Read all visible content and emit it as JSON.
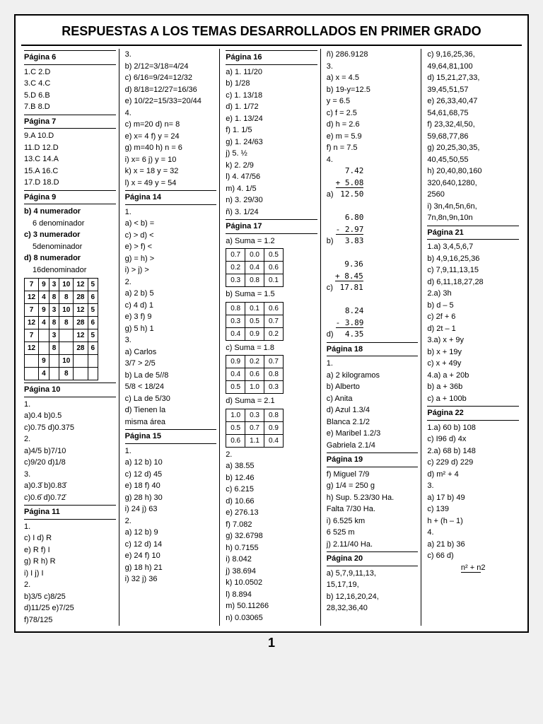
{
  "title": "RESPUESTAS A LOS TEMAS DESARROLLADOS EN PRIMER GRADO",
  "page_number": "1",
  "c1": {
    "p6": "Página 6",
    "p6a": [
      "1.C  2.D",
      "3.C  4.C",
      "5.D  6.B",
      "7.B  8.D"
    ],
    "p7": "Página 7",
    "p7a": [
      "9.A  10.D",
      "11.D 12.D",
      "13.C 14.A",
      "15.A 16.C",
      "17.D 18.D"
    ],
    "p9": "Página 9",
    "p9b": "b) 4 numerador",
    "p9b2": "6 denominador",
    "p9c": "c) 3 numerador",
    "p9c2": "5denominador",
    "p9d": "d) 8 numerador",
    "p9d2": "16denominador",
    "t1": [
      [
        "7",
        "9",
        "3",
        "10",
        "12",
        "5"
      ],
      [
        "12",
        "4",
        "8",
        "8",
        "28",
        "6"
      ],
      [
        "7",
        "9",
        "3",
        "10",
        "12",
        "5"
      ],
      [
        "12",
        "4",
        "8",
        "8",
        "28",
        "6"
      ],
      [
        "7",
        "",
        "3",
        "",
        "12",
        "5"
      ],
      [
        "12",
        "",
        "8",
        "",
        "28",
        "6"
      ],
      [
        "",
        "9",
        "",
        "10",
        "",
        ""
      ],
      [
        "",
        "4",
        "",
        "8",
        "",
        ""
      ]
    ],
    "p10": "Página 10",
    "p10a": [
      "1.",
      "a)0.4  b)0.5",
      "c)0.75  d)0.375",
      "2.",
      "a)4/5  b)7/10",
      "c)9/20  d)1/8",
      "3.",
      "a)0.3̄  b)0.83̄",
      "c)0.6̄  d)0.72̄"
    ],
    "p11": "Página 11",
    "p11a": [
      "1.",
      "c) I   d) R",
      "e) R  f) I",
      "g) R  h) R",
      "i) I   j) I",
      "2.",
      "b)3/5   c)8/25",
      "d)11/25 e)7/25",
      "f)78/125"
    ]
  },
  "c2": {
    "top": [
      "3.",
      "b) 2/12=3/18=4/24",
      "c) 6/16=9/24=12/32",
      "d) 8/18=12/27=16/36",
      "e) 10/22=15/33=20/44",
      "4.",
      "c) m=20  d) n= 8",
      "e) x= 4   f) y = 24",
      "g) m=40  h) n = 6",
      "i)  x= 6   j) y = 10",
      "k) x = 18  y = 32",
      "l)  x = 49  y = 54"
    ],
    "p14": "Página 14",
    "p14a": [
      "1.",
      "a) <   b) =",
      "c) >   d) <",
      "e) >   f) <",
      "g) =   h) >",
      "i) >   j) >",
      "2.",
      "a) 2   b) 5",
      "c) 4   d) 1",
      "e) 3   f) 9",
      "g) 5   h) 1",
      "3.",
      "a) Carlos",
      "3/7 > 2/5",
      "b) La de 5//8",
      "5/8 < 18/24",
      "c) La de 5/30",
      "d) Tienen la",
      "misma área"
    ],
    "p15": "Página 15",
    "p15a": [
      "1.",
      "a) 12   b) 10",
      "c) 12   d) 45",
      "e) 18   f) 40",
      "g) 28   h) 30",
      "i) 24   j) 63",
      "2.",
      "a) 12   b)  9",
      "c) 12   d) 14",
      "e) 24   f) 10",
      "g) 18   h) 21",
      "i)  32   j) 36"
    ]
  },
  "c3": {
    "p16": "Página 16",
    "p16a": [
      "a) 1. 11/20",
      "b) 1/28",
      "c) 1. 13/18",
      "d) 1. 1/72",
      "e) 1. 13/24",
      "f) 1. 1/5",
      "g) 1. 24/63",
      "j) 5. ½",
      "k) 2. 2/9",
      "l) 4. 47/56",
      "m) 4. 1/5",
      "n) 3. 29/30",
      "ñ) 3. 1/24"
    ],
    "p17": "Página 17",
    "s1h": "a) Suma = 1.2",
    "s1": [
      [
        "0.7",
        "0.0",
        "0.5"
      ],
      [
        "0.2",
        "0.4",
        "0.6"
      ],
      [
        "0.3",
        "0.8",
        "0.1"
      ]
    ],
    "s2h": "b) Suma = 1.5",
    "s2": [
      [
        "0.8",
        "0.1",
        "0.6"
      ],
      [
        "0.3",
        "0.5",
        "0.7"
      ],
      [
        "0.4",
        "0.9",
        "0.2"
      ]
    ],
    "s3h": "c) Suma = 1.8",
    "s3": [
      [
        "0.9",
        "0.2",
        "0.7"
      ],
      [
        "0.4",
        "0.6",
        "0.8"
      ],
      [
        "0.5",
        "1.0",
        "0.3"
      ]
    ],
    "s4h": "d) Suma = 2.1",
    "s4": [
      [
        "1.0",
        "0.3",
        "0.8"
      ],
      [
        "0.5",
        "0.7",
        "0.9"
      ],
      [
        "0.6",
        "1.1",
        "0.4"
      ]
    ],
    "p17b": [
      "2.",
      "a)  38.55",
      "b)  12.46",
      "c)   6.215",
      "d)  10.66",
      "e) 276.13",
      "f)    7.082",
      "g)  32.6798",
      "h)   0.7155",
      "i)    8.042",
      "j)   38.694",
      "k)  10.0502",
      "l)    8.894",
      "m) 50.11266",
      "n)   0.03065"
    ]
  },
  "c4": {
    "top": [
      "ñ) 286.9128",
      "3.",
      "a)  x = 4.5",
      "b) 19-y=12.5",
      "    y = 6.5",
      "c)  f = 2.5",
      "d)  h = 2.6",
      "e)  m = 5.9",
      "f)   n = 7.5",
      "4."
    ],
    "calcA": {
      "a": "7.42",
      "b": "+ 5.08",
      "r": "12.50"
    },
    "calcB": {
      "a": "6.80",
      "b": "- 2.97",
      "r": "3.83"
    },
    "calcC": {
      "a": "9.36",
      "b": "+ 8.45",
      "r": "17.81"
    },
    "calcD": {
      "a": "8.24",
      "b": "- 3.89",
      "r": "4.35"
    },
    "p18": "Página 18",
    "p18a": [
      "1.",
      "a) 2 kilogramos",
      "b) Alberto",
      "c) Anita",
      "d) Azul  1.3/4",
      "Blanca 2.1/2",
      "e) Maribel 1.2/3",
      "Gabriela 2.1/4"
    ],
    "p19": "Página 19",
    "p19a": [
      "f) Miguel 7/9",
      "g) 1/4 = 250 g",
      "h) Sup. 5.23/30 Ha.",
      "Falta 7/30 Ha.",
      "i) 6.525 km",
      "   6 525 m",
      "j) 2.11/40 Ha."
    ],
    "p20": "Página 20",
    "p20a": [
      "a) 5,7,9,11,13,",
      "15,17,19,",
      "b) 12,16,20,24,",
      "28,32,36,40"
    ]
  },
  "c5": {
    "top": [
      "c) 9,16,25,36,",
      "49,64,81,100",
      "d) 15,21,27,33,",
      "39,45,51,57",
      "e) 26,33,40,47",
      "54,61,68,75",
      "f) 23,32,4l,50,",
      "59,68,77,86",
      "g) 20,25,30,35,",
      "40,45,50,55",
      "h) 20,40,80,160",
      "320,640,1280,",
      "2560",
      "i) 3n,4n,5n,6n,",
      "7n,8n,9n,10n"
    ],
    "p21": "Página 21",
    "p21a": [
      "1.a) 3,4,5,6,7",
      "b) 4,9,16,25,36",
      "c) 7,9,11,13,15",
      "d) 6,11,18,27,28",
      "2.a) 3h",
      "b) d – 5",
      "c) 2f + 6",
      "d) 2t – 1",
      "3.a)  x + 9y",
      "  b)  x + 19y",
      "c) x + 49y",
      "4.a) a + 20b",
      "b) a + 36b",
      "c) a + 100b"
    ],
    "p22": "Página 22",
    "p22a": [
      "1.a) 60   b) 108",
      "c) I96   d) 4x",
      "2.a) 68   b) 148",
      "c) 229   d) 229",
      "d) m² + 4",
      "",
      "3.",
      "a) 17   b) 49",
      "c) 139",
      "h + (h – 1)",
      "4.",
      "a) 21   b) 36",
      "c) 66   d)"
    ],
    "frac_top": "n² + n",
    "frac_bot": "2"
  }
}
